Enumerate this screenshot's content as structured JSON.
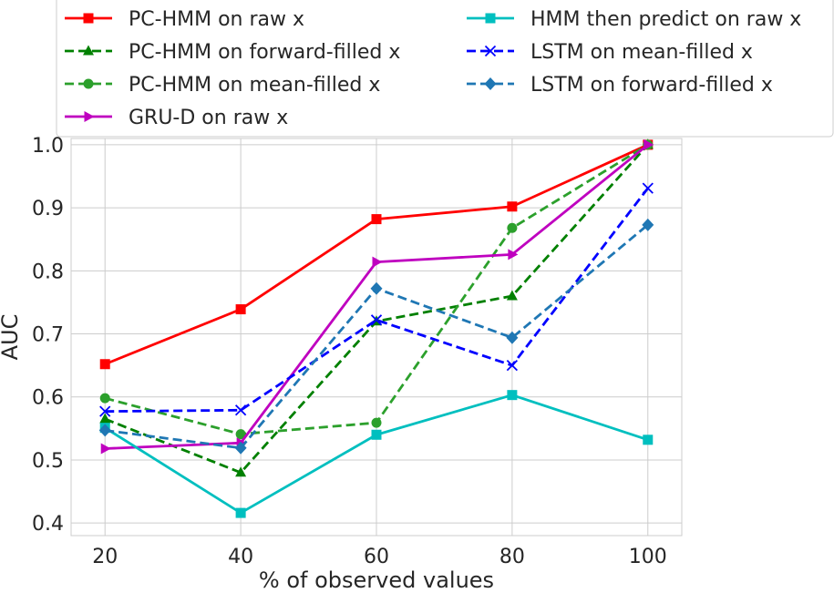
{
  "chart_data": {
    "type": "line",
    "xlabel": "% of observed values",
    "ylabel": "AUC",
    "x": [
      20,
      40,
      60,
      80,
      100
    ],
    "xlim": [
      15,
      105
    ],
    "ylim": [
      0.38,
      1.01
    ],
    "xticks": [
      "20",
      "40",
      "60",
      "80",
      "100"
    ],
    "yticks": [
      "0.4",
      "0.5",
      "0.6",
      "0.7",
      "0.8",
      "0.9",
      "1.0"
    ],
    "grid": true,
    "legend_placement": "top, two columns",
    "series": [
      {
        "name": "PC-HMM on raw x",
        "values": [
          0.652,
          0.739,
          0.882,
          0.902,
          1.0
        ],
        "color": "#ff0000",
        "dash": "solid",
        "marker": "square"
      },
      {
        "name": "PC-HMM on forward-filled x",
        "values": [
          0.565,
          0.48,
          0.72,
          0.76,
          1.0
        ],
        "color": "#008000",
        "dash": "dashed",
        "marker": "triangle-up"
      },
      {
        "name": "PC-HMM on mean-filled x",
        "values": [
          0.598,
          0.541,
          0.559,
          0.868,
          1.0
        ],
        "color": "#2ca02c",
        "dash": "dashed",
        "marker": "circle"
      },
      {
        "name": "GRU-D on raw x",
        "values": [
          0.518,
          0.527,
          0.814,
          0.826,
          1.0
        ],
        "color": "#bf00bf",
        "dash": "solid",
        "marker": "triangle-right"
      },
      {
        "name": "HMM then predict on raw x",
        "values": [
          0.551,
          0.416,
          0.54,
          0.603,
          0.532
        ],
        "color": "#00bfbf",
        "dash": "solid",
        "marker": "square"
      },
      {
        "name": "LSTM on mean-filled x",
        "values": [
          0.577,
          0.579,
          0.722,
          0.65,
          0.931
        ],
        "color": "#0000ff",
        "dash": "dashed",
        "marker": "x"
      },
      {
        "name": "LSTM on forward-filled x",
        "values": [
          0.547,
          0.519,
          0.772,
          0.694,
          0.873
        ],
        "color": "#1f77b4",
        "dash": "dashed",
        "marker": "diamond"
      }
    ]
  }
}
